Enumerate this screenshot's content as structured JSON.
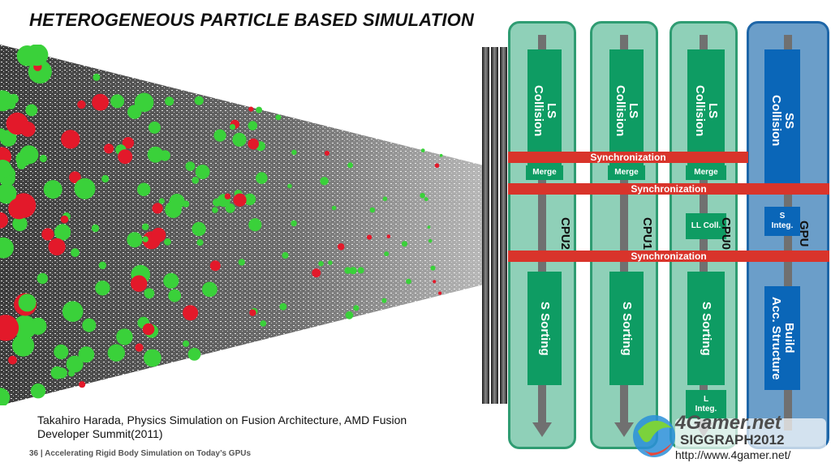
{
  "title": "HETEROGENEOUS PARTICLE BASED SIMULATION",
  "caption": "Takahiro Harada, Physics Simulation on Fusion Architecture, AMD Fusion Developer Summit(2011)",
  "footer": "36 | Accelerating Rigid Body Simulation on Today’s GPUs",
  "columns": [
    {
      "label": "CPU2",
      "top_block": "LS\nCollision",
      "merge": "Merge",
      "bottom_block": "S Sorting"
    },
    {
      "label": "CPU1",
      "top_block": "LS\nCollision",
      "merge": "Merge",
      "bottom_block": "S Sorting"
    },
    {
      "label": "CPU0",
      "top_block": "LS\nCollision",
      "merge": "Merge",
      "mid_block": "LL Coll.",
      "bottom_block": "S Sorting",
      "end_block": "L\nInteg."
    },
    {
      "label": "GPU",
      "top_block": "SS\nCollision",
      "mid_block": "S\nInteg.",
      "bottom_block": "Build\nAcc. Structure"
    }
  ],
  "sync": [
    "Synchronization",
    "Synchronization",
    "Synchronization"
  ],
  "watermark": {
    "brand": "4Gamer.net",
    "event": "SIGGRAPH2012",
    "url": "http://www.4gamer.net/"
  },
  "colors": {
    "cpu_block": "#0e9c63",
    "gpu_block": "#0a66b8",
    "sync_bar": "#d9342b",
    "cpu_bg": "#8fd0b8",
    "gpu_bg": "#6b9ec9"
  }
}
